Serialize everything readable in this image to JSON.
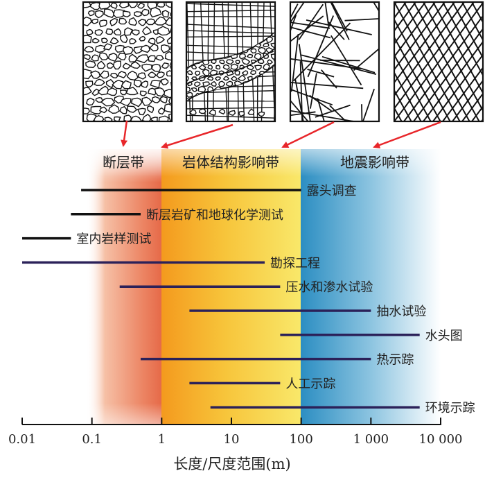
{
  "zones": [
    {
      "label": "断层带",
      "color": "#e8684a"
    },
    {
      "label": "岩体结构影响带",
      "color": "#f3a21f"
    },
    {
      "label": "地震影响带",
      "color": "#2f8fbf"
    }
  ],
  "panels": [
    {
      "name": "fault-gouge-panel",
      "pattern": "breccia",
      "points_to_zone": "断层带"
    },
    {
      "name": "banded-structure-panel",
      "pattern": "band",
      "points_to_zone": "岩体结构影响带"
    },
    {
      "name": "random-fractures-panel",
      "pattern": "random-fractures",
      "points_to_zone": "岩体结构影响带"
    },
    {
      "name": "regular-joints-panel",
      "pattern": "grid",
      "points_to_zone": "地震影响带"
    }
  ],
  "methods": [
    {
      "label": "露头调查",
      "min": 0.07,
      "max": 100,
      "color": "#111111"
    },
    {
      "label": "断层岩矿和地球化学测试",
      "min": 0.05,
      "max": 0.5,
      "color": "#111111"
    },
    {
      "label": "室内岩样测试",
      "min": 0.01,
      "max": 0.05,
      "color": "#111111"
    },
    {
      "label": "勘探工程",
      "min": 0.01,
      "max": 30,
      "color": "#2b2159"
    },
    {
      "label": "压水和渗水试验",
      "min": 0.25,
      "max": 50,
      "color": "#2b2159"
    },
    {
      "label": "抽水试验",
      "min": 2.5,
      "max": 1000,
      "color": "#2b2159"
    },
    {
      "label": "水头图",
      "min": 50,
      "max": 5000,
      "color": "#2b2159"
    },
    {
      "label": "热示踪",
      "min": 0.5,
      "max": 1000,
      "color": "#2b2159"
    },
    {
      "label": "人工示踪",
      "min": 2.5,
      "max": 50,
      "color": "#2b2159"
    },
    {
      "label": "环境示踪",
      "min": 5,
      "max": 5000,
      "color": "#2b2159"
    }
  ],
  "axis": {
    "scale": "log",
    "range": [
      0.01,
      10000
    ],
    "ticks": [
      {
        "value": 0.01,
        "label": "0.01"
      },
      {
        "value": 0.1,
        "label": "0.1"
      },
      {
        "value": 1,
        "label": "1"
      },
      {
        "value": 10,
        "label": "10"
      },
      {
        "value": 100,
        "label": "100"
      },
      {
        "value": 1000,
        "label": "1 000"
      },
      {
        "value": 10000,
        "label": "10 000"
      }
    ],
    "title": "长度/尺度范围(m)"
  },
  "arrow_color": "#e8262a"
}
